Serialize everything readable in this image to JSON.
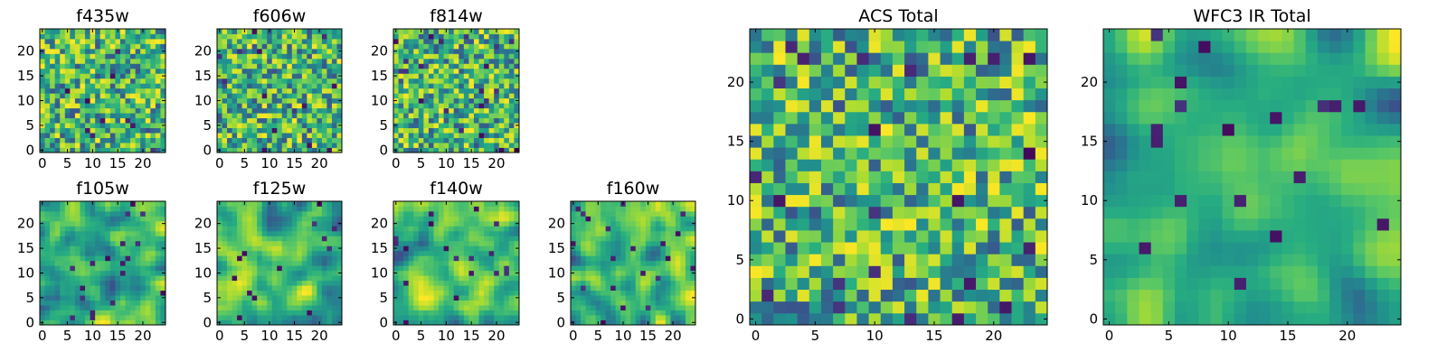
{
  "chart_data": [
    {
      "type": "heatmap",
      "title": "f435w",
      "x_ticks": [
        0,
        5,
        10,
        15,
        20
      ],
      "y_ticks": [
        0,
        5,
        10,
        15,
        20
      ],
      "grid_size": 25,
      "colormap": "viridis",
      "color_range": [
        0.0,
        1.0
      ],
      "noise_seed": 11,
      "smoothness": 0
    },
    {
      "type": "heatmap",
      "title": "f606w",
      "x_ticks": [
        0,
        5,
        10,
        15,
        20
      ],
      "y_ticks": [
        0,
        5,
        10,
        15,
        20
      ],
      "grid_size": 25,
      "colormap": "viridis",
      "color_range": [
        0.0,
        1.0
      ],
      "noise_seed": 23,
      "smoothness": 0
    },
    {
      "type": "heatmap",
      "title": "f814w",
      "x_ticks": [
        0,
        5,
        10,
        15,
        20
      ],
      "y_ticks": [
        0,
        5,
        10,
        15,
        20
      ],
      "grid_size": 25,
      "colormap": "viridis",
      "color_range": [
        0.0,
        1.0
      ],
      "noise_seed": 37,
      "smoothness": 0
    },
    {
      "type": "heatmap",
      "title": "f105w",
      "x_ticks": [
        0,
        5,
        10,
        15,
        20
      ],
      "y_ticks": [
        0,
        5,
        10,
        15,
        20
      ],
      "grid_size": 25,
      "colormap": "viridis",
      "color_range": [
        0.0,
        1.0
      ],
      "noise_seed": 41,
      "smoothness": 2
    },
    {
      "type": "heatmap",
      "title": "f125w",
      "x_ticks": [
        0,
        5,
        10,
        15,
        20
      ],
      "y_ticks": [
        0,
        5,
        10,
        15,
        20
      ],
      "grid_size": 25,
      "colormap": "viridis",
      "color_range": [
        0.0,
        1.0
      ],
      "noise_seed": 53,
      "smoothness": 2
    },
    {
      "type": "heatmap",
      "title": "f140w",
      "x_ticks": [
        0,
        5,
        10,
        15,
        20
      ],
      "y_ticks": [
        0,
        5,
        10,
        15,
        20
      ],
      "grid_size": 25,
      "colormap": "viridis",
      "color_range": [
        0.0,
        1.0
      ],
      "noise_seed": 67,
      "smoothness": 2
    },
    {
      "type": "heatmap",
      "title": "f160w",
      "x_ticks": [
        0,
        5,
        10,
        15,
        20
      ],
      "y_ticks": [
        0,
        5,
        10,
        15,
        20
      ],
      "grid_size": 25,
      "colormap": "viridis",
      "color_range": [
        0.0,
        1.0
      ],
      "noise_seed": 79,
      "smoothness": 2
    },
    {
      "type": "heatmap",
      "title": "ACS Total",
      "x_ticks": [
        0,
        5,
        10,
        15,
        20
      ],
      "y_ticks": [
        0,
        5,
        10,
        15,
        20
      ],
      "grid_size": 25,
      "colormap": "viridis",
      "color_range": [
        0.0,
        1.0
      ],
      "noise_seed": 97,
      "smoothness": 0
    },
    {
      "type": "heatmap",
      "title": "WFC3 IR Total",
      "x_ticks": [
        0,
        5,
        10,
        15,
        20
      ],
      "y_ticks": [
        0,
        5,
        10,
        15,
        20
      ],
      "grid_size": 25,
      "colormap": "viridis",
      "color_range": [
        0.0,
        1.0
      ],
      "noise_seed": 113,
      "smoothness": 3
    }
  ]
}
